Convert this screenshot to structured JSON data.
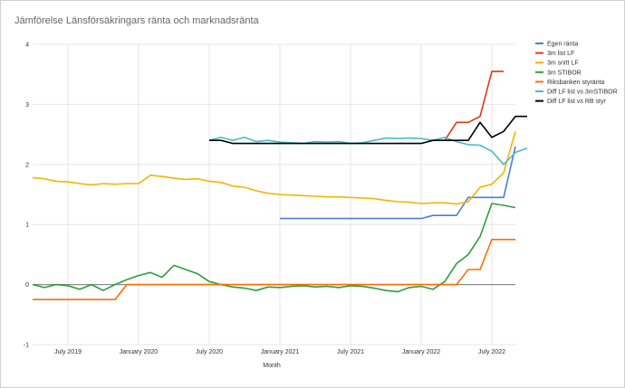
{
  "chart_data": {
    "type": "line",
    "title": "Jämförelse Länsförsäkringars ränta och marknadsränta",
    "xlabel": "Month",
    "ylabel": "",
    "ylim": [
      -1,
      4
    ],
    "yticks": [
      "-1",
      "0",
      "1",
      "2",
      "3",
      "4"
    ],
    "x_range": [
      "2019-04",
      "2022-09"
    ],
    "xticks": [
      {
        "month": "2019-07",
        "label": "July 2019"
      },
      {
        "month": "2020-01",
        "label": "January 2020"
      },
      {
        "month": "2020-07",
        "label": "July 2020"
      },
      {
        "month": "2021-01",
        "label": "January 2021"
      },
      {
        "month": "2021-07",
        "label": "July 2021"
      },
      {
        "month": "2022-01",
        "label": "January 2022"
      },
      {
        "month": "2022-07",
        "label": "July 2022"
      }
    ],
    "grid": true,
    "legend_position": "right",
    "months": [
      "2019-04",
      "2019-05",
      "2019-06",
      "2019-07",
      "2019-08",
      "2019-09",
      "2019-10",
      "2019-11",
      "2019-12",
      "2020-01",
      "2020-02",
      "2020-03",
      "2020-04",
      "2020-05",
      "2020-06",
      "2020-07",
      "2020-08",
      "2020-09",
      "2020-10",
      "2020-11",
      "2020-12",
      "2021-01",
      "2021-02",
      "2021-03",
      "2021-04",
      "2021-05",
      "2021-06",
      "2021-07",
      "2021-08",
      "2021-09",
      "2021-10",
      "2021-11",
      "2021-12",
      "2022-01",
      "2022-02",
      "2022-03",
      "2022-04",
      "2022-05",
      "2022-06",
      "2022-07",
      "2022-08",
      "2022-09"
    ],
    "series": [
      {
        "name": "Egen ränta",
        "color": "#4a7fd8",
        "start_index": 21,
        "values": [
          1.1,
          1.1,
          1.1,
          1.1,
          1.1,
          1.1,
          1.1,
          1.1,
          1.1,
          1.1,
          1.1,
          1.1,
          1.1,
          1.15,
          1.15,
          1.15,
          1.45,
          1.45,
          1.45,
          1.45,
          2.3
        ]
      },
      {
        "name": "3m list LF",
        "color": "#dc3912",
        "start_index": 35,
        "values": [
          2.4,
          2.7,
          2.7,
          2.8,
          3.55,
          3.55
        ]
      },
      {
        "name": "3m snitt LF",
        "color": "#f4b400",
        "start_index": 0,
        "values": [
          1.78,
          1.76,
          1.72,
          1.71,
          1.68,
          1.66,
          1.68,
          1.67,
          1.68,
          1.68,
          1.82,
          1.8,
          1.77,
          1.75,
          1.76,
          1.72,
          1.7,
          1.64,
          1.62,
          1.56,
          1.52,
          1.5,
          1.49,
          1.48,
          1.47,
          1.46,
          1.46,
          1.45,
          1.44,
          1.43,
          1.4,
          1.38,
          1.37,
          1.35,
          1.36,
          1.36,
          1.34,
          1.38,
          1.62,
          1.67,
          1.86,
          2.55
        ]
      },
      {
        "name": "3m STIBOR",
        "color": "#2e9e3e",
        "start_index": 0,
        "values": [
          0.0,
          -0.05,
          0.0,
          -0.02,
          -0.08,
          0.0,
          -0.1,
          0.0,
          0.08,
          0.15,
          0.2,
          0.12,
          0.32,
          0.25,
          0.18,
          0.05,
          0.0,
          -0.04,
          -0.06,
          -0.1,
          -0.04,
          -0.05,
          -0.03,
          -0.02,
          -0.04,
          -0.03,
          -0.05,
          -0.02,
          -0.03,
          -0.06,
          -0.1,
          -0.12,
          -0.05,
          -0.03,
          -0.08,
          0.05,
          0.35,
          0.5,
          0.8,
          1.35,
          1.32,
          1.28
        ]
      },
      {
        "name": "Riksbanken styränta",
        "color": "#ff6d00",
        "start_index": 0,
        "values": [
          -0.25,
          -0.25,
          -0.25,
          -0.25,
          -0.25,
          -0.25,
          -0.25,
          -0.25,
          0,
          0,
          0,
          0,
          0,
          0,
          0,
          0,
          0,
          0,
          0,
          0,
          0,
          0,
          0,
          0,
          0,
          0,
          0,
          0,
          0,
          0,
          0,
          0,
          0,
          0,
          0,
          0,
          0,
          0.25,
          0.25,
          0.75,
          0.75,
          0.75
        ]
      },
      {
        "name": "Diff LF list vs 3mSTIBOR",
        "color": "#46bdc6",
        "start_index": 15,
        "values": [
          2.4,
          2.45,
          2.4,
          2.45,
          2.38,
          2.4,
          2.37,
          2.36,
          2.35,
          2.38,
          2.37,
          2.38,
          2.35,
          2.36,
          2.4,
          2.44,
          2.43,
          2.44,
          2.43,
          2.4,
          2.45,
          2.38,
          2.33,
          2.32,
          2.22,
          2.0,
          2.2,
          2.27
        ]
      },
      {
        "name": "Diff LF list vs RB styr",
        "color": "#000000",
        "start_index": 15,
        "values": [
          2.4,
          2.4,
          2.35,
          2.35,
          2.35,
          2.35,
          2.35,
          2.35,
          2.35,
          2.35,
          2.35,
          2.35,
          2.35,
          2.35,
          2.35,
          2.35,
          2.35,
          2.35,
          2.35,
          2.4,
          2.4,
          2.4,
          2.4,
          2.7,
          2.45,
          2.55,
          2.8,
          2.8
        ]
      }
    ]
  }
}
